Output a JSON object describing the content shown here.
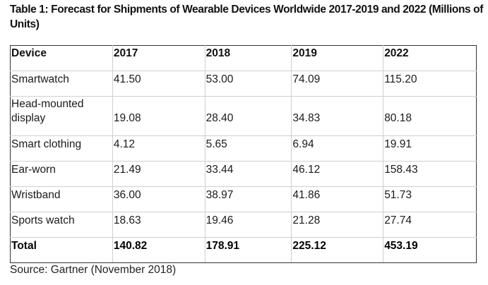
{
  "title": "Table 1: Forecast for Shipments of Wearable Devices Worldwide 2017-2019 and 2022 (Millions of Units)",
  "table": {
    "headers": [
      "Device",
      "2017",
      "2018",
      "2019",
      "2022"
    ],
    "rows": [
      {
        "device": "Smartwatch",
        "values": [
          "41.50",
          "53.00",
          "74.09",
          "115.20"
        ]
      },
      {
        "device": "Head-mounted display",
        "values": [
          "19.08",
          "28.40",
          "34.83",
          "80.18"
        ]
      },
      {
        "device": "Smart clothing",
        "values": [
          "4.12",
          "5.65",
          "6.94",
          "19.91"
        ]
      },
      {
        "device": "Ear-worn",
        "values": [
          "21.49",
          "33.44",
          "46.12",
          "158.43"
        ]
      },
      {
        "device": "Wristband",
        "values": [
          "36.00",
          "38.97",
          "41.86",
          "51.73"
        ]
      },
      {
        "device": "Sports watch",
        "values": [
          "18.63",
          "19.46",
          "21.28",
          "27.74"
        ]
      }
    ],
    "total": {
      "device": "Total",
      "values": [
        "140.82",
        "178.91",
        "225.12",
        "453.19"
      ]
    }
  },
  "source": "Source: Gartner (November 2018)"
}
